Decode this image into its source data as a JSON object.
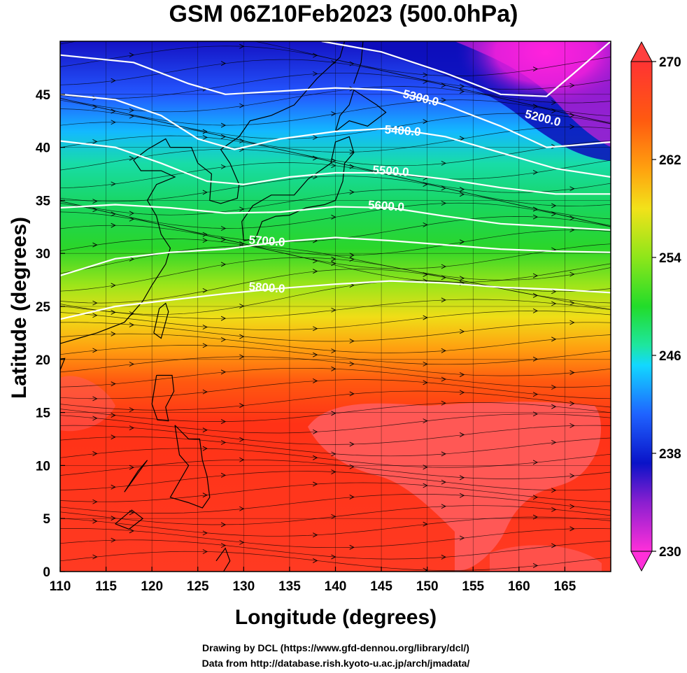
{
  "title": "GSM 06Z10Feb2023 (500.0hPa)",
  "xlabel": "Longitude (degrees)",
  "ylabel": "Latitude  (degrees)",
  "credits": [
    "Drawing by DCL (https://www.gfd-dennou.org/library/dcl/)",
    "Data from http://database.rish.kyoto-u.ac.jp/arch/jmadata/"
  ],
  "colors": {
    "height_contour": "#ffffff",
    "coastline": "#000000",
    "streamline": "#000000",
    "colorbar_min": "#ff2fd9",
    "colorbar_max": "#ff3333"
  },
  "chart_data": {
    "type": "heatmap",
    "field": "temperature at 500 hPa with geopotential height contours and wind streamlines",
    "xlim": [
      110,
      170
    ],
    "ylim": [
      0,
      50
    ],
    "x_ticks": [
      110,
      115,
      120,
      125,
      130,
      135,
      140,
      145,
      150,
      155,
      160,
      165
    ],
    "y_ticks": [
      0,
      5,
      10,
      15,
      20,
      25,
      30,
      35,
      40,
      45
    ],
    "colorbar": {
      "min": 230,
      "max": 270,
      "ticks": [
        230,
        238,
        246,
        254,
        262,
        270
      ],
      "colors": [
        "#ff2fd9",
        "#8a1fd0",
        "#0a13c8",
        "#1f63ff",
        "#12d8ff",
        "#1ee6a0",
        "#22dc2a",
        "#8ee61a",
        "#f2e21a",
        "#ffa20f",
        "#ff5f10",
        "#ff2a10"
      ]
    },
    "contour_labels": [
      "5200.0",
      "5300.0",
      "5400.0",
      "5500.0",
      "5600.0",
      "5700.0",
      "5800.0"
    ],
    "contours": [
      {
        "level": 5200,
        "points": [
          [
            138.5,
            50
          ],
          [
            145,
            49
          ],
          [
            152,
            47
          ],
          [
            158,
            45
          ],
          [
            163,
            44.8
          ],
          [
            166,
            47
          ],
          [
            170,
            50
          ]
        ]
      },
      {
        "level": 5300,
        "points": [
          [
            110,
            48.7
          ],
          [
            118,
            48
          ],
          [
            124,
            46
          ],
          [
            128,
            45
          ],
          [
            132,
            45.2
          ],
          [
            140,
            45.6
          ],
          [
            146,
            45.4
          ],
          [
            152,
            44
          ],
          [
            158,
            42
          ],
          [
            163,
            40
          ],
          [
            166,
            40.2
          ],
          [
            170,
            40.5
          ]
        ]
      },
      {
        "level": 5400,
        "points": [
          [
            110,
            45
          ],
          [
            116,
            44.5
          ],
          [
            121,
            43
          ],
          [
            125,
            40.8
          ],
          [
            129,
            39.8
          ],
          [
            134,
            40.8
          ],
          [
            140,
            41.5
          ],
          [
            146,
            41.8
          ],
          [
            152,
            41
          ],
          [
            158,
            39.5
          ],
          [
            164,
            38
          ],
          [
            170,
            37.2
          ]
        ]
      },
      {
        "level": 5500,
        "points": [
          [
            110,
            40.6
          ],
          [
            116,
            40
          ],
          [
            121,
            38.5
          ],
          [
            126,
            36.8
          ],
          [
            130,
            36.5
          ],
          [
            135,
            37.2
          ],
          [
            140,
            37.6
          ],
          [
            146,
            37.6
          ],
          [
            152,
            37
          ],
          [
            158,
            36.2
          ],
          [
            164,
            35.6
          ],
          [
            170,
            35.6
          ]
        ]
      },
      {
        "level": 5600,
        "points": [
          [
            110,
            34.3
          ],
          [
            116,
            34.6
          ],
          [
            122,
            34.3
          ],
          [
            128,
            33.8
          ],
          [
            134,
            33.9
          ],
          [
            140,
            34.4
          ],
          [
            146,
            34.3
          ],
          [
            152,
            33.5
          ],
          [
            158,
            32.8
          ],
          [
            164,
            32.5
          ],
          [
            170,
            32.2
          ]
        ]
      },
      {
        "level": 5700,
        "points": [
          [
            110,
            27.9
          ],
          [
            116,
            29.5
          ],
          [
            122,
            30.1
          ],
          [
            128,
            30.4
          ],
          [
            134,
            31.1
          ],
          [
            140,
            31.5
          ],
          [
            146,
            31.2
          ],
          [
            152,
            30.8
          ],
          [
            158,
            30.4
          ],
          [
            164,
            30.2
          ],
          [
            170,
            30.1
          ]
        ]
      },
      {
        "level": 5800,
        "points": [
          [
            110,
            23.8
          ],
          [
            116,
            25
          ],
          [
            122,
            25.6
          ],
          [
            128,
            26.2
          ],
          [
            134,
            26.7
          ],
          [
            140,
            27.1
          ],
          [
            146,
            27.4
          ],
          [
            152,
            27.2
          ],
          [
            158,
            26.8
          ],
          [
            164,
            26.6
          ],
          [
            170,
            26.3
          ]
        ]
      }
    ],
    "contour_label_positions": [
      {
        "text": "5200.0",
        "x": 162.5,
        "y": 42.4
      },
      {
        "text": "5300.0",
        "x": 149.2,
        "y": 44.3
      },
      {
        "text": "5400.0",
        "x": 147.3,
        "y": 41.2
      },
      {
        "text": "5500.0",
        "x": 146.0,
        "y": 37.4
      },
      {
        "text": "5600.0",
        "x": 145.5,
        "y": 34.1
      },
      {
        "text": "5700.0",
        "x": 132.5,
        "y": 30.8
      },
      {
        "text": "5800.0",
        "x": 132.5,
        "y": 26.4
      }
    ]
  }
}
